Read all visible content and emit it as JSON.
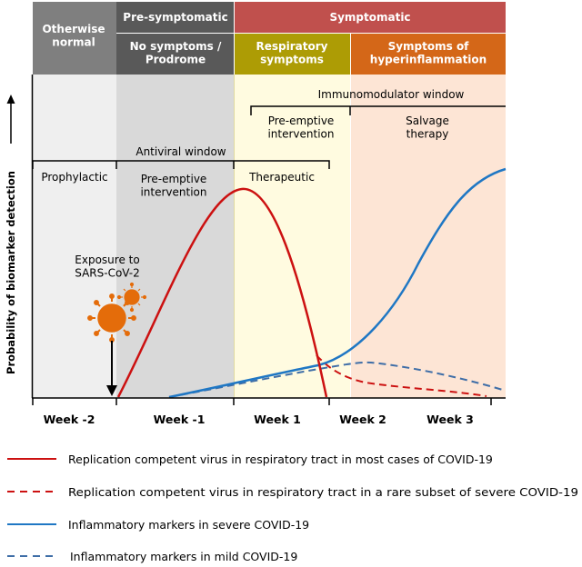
{
  "stages": {
    "otherwise_normal": "Otherwise\nnormal",
    "pre_symptomatic": "Pre-symptomatic",
    "symptomatic": "Symptomatic",
    "no_symptoms": "No symptoms /\nProdrome",
    "respiratory": "Respiratory\nsymptoms",
    "hyperinflammation": "Symptoms of\nhyperinflammation"
  },
  "windows": {
    "immunomodulator": "Immunomodulator window",
    "antiviral": "Antiviral window",
    "pre_emptive_upper": "Pre-emptive\nintervention",
    "salvage": "Salvage\ntherapy",
    "prophylactic": "Prophylactic",
    "pre_emptive_lower": "Pre-emptive\nintervention",
    "therapeutic": "Therapeutic"
  },
  "exposure": "Exposure to\nSARS-CoV-2",
  "y_axis_label": "Probability of biomarker detection",
  "x_ticks": [
    "Week -2",
    "Week -1",
    "Week 1",
    "Week 2",
    "Week 3"
  ],
  "legend": [
    "Replication competent virus in respiratory tract in most cases of COVID-19",
    "Replication competent virus in respiratory tract in a rare subset of severe COVID-19",
    "Inflammatory markers in severe COVID-19",
    "Inflammatory markers in mild COVID-19"
  ],
  "colors": {
    "header_grey": "#7f7f7f",
    "header_dark": "#595959",
    "header_red": "#c0504d",
    "header_olive": "#ad9c05",
    "header_orange": "#d46718",
    "bg_light_grey": "#efefef",
    "bg_grey": "#d9d9d9",
    "bg_yellow": "#fffbe0",
    "bg_peach": "#fde5d5",
    "virus": "#e46c0a",
    "red_line": "#cc1111",
    "blue_solid": "#1f77c4",
    "blue_dashed": "#3f6ea7"
  }
}
